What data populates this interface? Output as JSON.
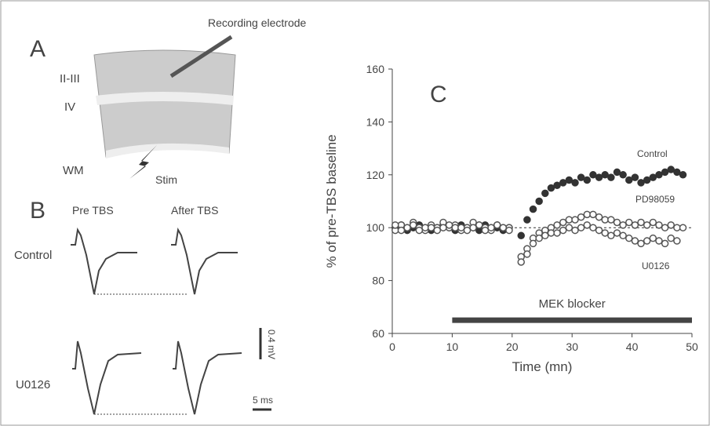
{
  "panel_a": {
    "label": "A",
    "layers": [
      "II-III",
      "IV",
      "WM"
    ],
    "electrode": "Recording electrode",
    "stim": "Stim"
  },
  "panel_b": {
    "label": "B",
    "columns": [
      "Pre TBS",
      "After TBS"
    ],
    "rows": [
      "Control",
      "U0126"
    ],
    "scale_y": "0.4 mV",
    "scale_x": "5 ms"
  },
  "chart_data": {
    "type": "scatter",
    "panel_label": "C",
    "x_label": "Time (mn)",
    "y_label": "% of pre-TBS baseline",
    "xlim": [
      0,
      50
    ],
    "xticks": [
      0,
      10,
      20,
      30,
      40,
      50
    ],
    "ylim": [
      60,
      160
    ],
    "yticks": [
      60,
      80,
      100,
      120,
      140,
      160
    ],
    "reference_line": 100,
    "bar_annotation": {
      "label": "MEK blocker",
      "x": [
        10,
        50
      ],
      "y": 65
    },
    "x": [
      0.5,
      1.5,
      2.5,
      3.5,
      4.5,
      5.5,
      6.5,
      7.5,
      8.5,
      9.5,
      10.5,
      11.5,
      12.5,
      13.5,
      14.5,
      15.5,
      16.5,
      17.5,
      18.5,
      19.5,
      20.5,
      21.5,
      22.5,
      23.5,
      24.5,
      25.5,
      26.5,
      27.5,
      28.5,
      29.5,
      30.5,
      31.5,
      32.5,
      33.5,
      34.5,
      35.5,
      36.5,
      37.5,
      38.5,
      39.5,
      40.5,
      41.5,
      42.5,
      43.5,
      44.5,
      45.5,
      46.5,
      47.5,
      48.5
    ],
    "series": [
      {
        "name": "Control",
        "color": "#333333",
        "filled": true,
        "values": [
          100,
          101,
          99,
          100,
          101,
          100,
          99,
          100,
          101,
          100,
          99,
          101,
          100,
          100,
          99,
          101,
          100,
          100,
          99,
          100,
          null,
          97,
          103,
          107,
          110,
          113,
          115,
          116,
          117,
          118,
          117,
          119,
          118,
          120,
          119,
          120,
          119,
          121,
          120,
          118,
          119,
          117,
          118,
          119,
          120,
          121,
          122,
          121,
          120
        ]
      },
      {
        "name": "PD98059",
        "color": "#555555",
        "filled": false,
        "values": [
          99,
          101,
          100,
          102,
          100,
          99,
          101,
          100,
          102,
          100,
          101,
          99,
          100,
          102,
          101,
          100,
          99,
          101,
          100,
          100,
          null,
          89,
          92,
          96,
          98,
          99,
          100,
          101,
          102,
          103,
          103,
          104,
          105,
          105,
          104,
          103,
          103,
          102,
          101,
          102,
          101,
          102,
          101,
          102,
          101,
          100,
          101,
          100,
          100
        ]
      },
      {
        "name": "U0126",
        "color": "#555555",
        "filled": false,
        "values": [
          101,
          99,
          100,
          101,
          99,
          100,
          100,
          99,
          100,
          101,
          100,
          100,
          99,
          100,
          101,
          99,
          100,
          101,
          100,
          99,
          null,
          87,
          90,
          94,
          96,
          97,
          98,
          98,
          99,
          100,
          99,
          100,
          101,
          100,
          99,
          98,
          97,
          98,
          97,
          96,
          95,
          94,
          95,
          96,
          95,
          94,
          96,
          95,
          null
        ]
      }
    ]
  }
}
